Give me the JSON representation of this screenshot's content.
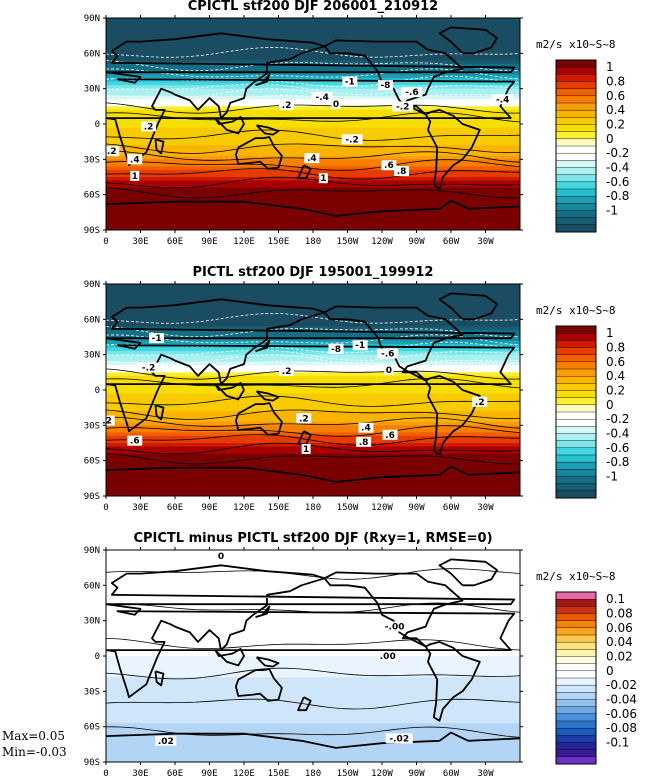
{
  "panels": [
    {
      "title": "CPICTL stf200 DJF 206001_210912",
      "unit": "m2/s x10~S~8",
      "lat_ticks": [
        "90N",
        "60N",
        "30N",
        "0",
        "30S",
        "60S",
        "90S"
      ],
      "lon_ticks": [
        "0",
        "30E",
        "60E",
        "90E",
        "120E",
        "150E",
        "180",
        "150W",
        "120W",
        "90W",
        "60W",
        "30W"
      ],
      "colorbar": {
        "labels": [
          "1",
          "0.8",
          "0.6",
          "0.4",
          "0.2",
          "0",
          "-0.2",
          "-0.4",
          "-0.6",
          "-0.8",
          "-1"
        ],
        "colors": [
          "#7a0000",
          "#a80000",
          "#cf1a00",
          "#e63c00",
          "#f25e00",
          "#f77f00",
          "#f99c10",
          "#fab400",
          "#f7cb00",
          "#f6df00",
          "#f9ef30",
          "#fffbc0",
          "#ffffff",
          "#ffffff",
          "#d5f7f7",
          "#aaf0f0",
          "#7ae6ea",
          "#44d6e0",
          "#26bfcf",
          "#1a9fb5",
          "#15879c",
          "#146f86",
          "#175d72",
          "#1a4d62"
        ]
      },
      "contour_labels": [
        {
          "text": "-1",
          "lon": 212,
          "lat": 36
        },
        {
          "text": "-8",
          "lon": 243,
          "lat": 33
        },
        {
          "text": "-.6",
          "lon": 266,
          "lat": 27
        },
        {
          "text": "-.4",
          "lon": 188,
          "lat": 23
        },
        {
          "text": "-.4",
          "lon": 345,
          "lat": 21
        },
        {
          "text": "0",
          "lon": 200,
          "lat": 17
        },
        {
          "text": "-.2",
          "lon": 258,
          "lat": 15
        },
        {
          "text": ".2",
          "lon": 157,
          "lat": 16
        },
        {
          "text": ".2",
          "lon": 37,
          "lat": -2
        },
        {
          "text": "-.2",
          "lon": 214,
          "lat": -13
        },
        {
          "text": ".4",
          "lon": 179,
          "lat": -29
        },
        {
          "text": ".2",
          "lon": 365,
          "lat": -23
        },
        {
          "text": ".4",
          "lon": 385,
          "lat": -30
        },
        {
          "text": ".6",
          "lon": 246,
          "lat": -35
        },
        {
          "text": ".8",
          "lon": 257,
          "lat": -40
        },
        {
          "text": "1",
          "lon": 189,
          "lat": -46
        },
        {
          "text": "1",
          "lon": 385,
          "lat": -44
        }
      ]
    },
    {
      "title": "PICTL stf200 DJF 195001_199912",
      "unit": "m2/s x10~S~8",
      "lat_ticks": [
        "90N",
        "60N",
        "30N",
        "0",
        "30S",
        "60S",
        "90S"
      ],
      "lon_ticks": [
        "0",
        "30E",
        "60E",
        "90E",
        "120E",
        "150E",
        "180",
        "150W",
        "120W",
        "90W",
        "60W",
        "30W"
      ],
      "colorbar": {
        "labels": [
          "1",
          "0.8",
          "0.6",
          "0.4",
          "0.2",
          "0",
          "-0.2",
          "-0.4",
          "-0.6",
          "-0.8",
          "-1"
        ],
        "colors": [
          "#7a0000",
          "#a80000",
          "#cf1a00",
          "#e63c00",
          "#f25e00",
          "#f77f00",
          "#f99c10",
          "#fab400",
          "#f7cb00",
          "#f6df00",
          "#f9ef30",
          "#fffbc0",
          "#ffffff",
          "#ffffff",
          "#d5f7f7",
          "#aaf0f0",
          "#7ae6ea",
          "#44d6e0",
          "#26bfcf",
          "#1a9fb5",
          "#15879c",
          "#146f86",
          "#175d72",
          "#1a4d62"
        ]
      },
      "contour_labels": [
        {
          "text": "-8",
          "lon": 200,
          "lat": 35
        },
        {
          "text": "-1",
          "lon": 221,
          "lat": 38
        },
        {
          "text": "-.6",
          "lon": 245,
          "lat": 31
        },
        {
          "text": "-1",
          "lon": 404,
          "lat": 44
        },
        {
          "text": "-.2",
          "lon": 397,
          "lat": 19
        },
        {
          "text": "0",
          "lon": 246,
          "lat": 17
        },
        {
          "text": ".2",
          "lon": 157,
          "lat": 16
        },
        {
          "text": ".2",
          "lon": 325,
          "lat": -10
        },
        {
          "text": ".2",
          "lon": 172,
          "lat": -24
        },
        {
          "text": ".4",
          "lon": 226,
          "lat": -32
        },
        {
          "text": ".6",
          "lon": 247,
          "lat": -38
        },
        {
          "text": ".8",
          "lon": 224,
          "lat": -44
        },
        {
          "text": "1",
          "lon": 174,
          "lat": -50
        },
        {
          "text": ".2",
          "lon": 361,
          "lat": -26
        },
        {
          "text": ".6",
          "lon": 385,
          "lat": -43
        }
      ]
    },
    {
      "title": "CPICTL minus PICTL stf200 DJF (Rxy=1, RMSE=0)",
      "unit": "m2/s x10~S~8",
      "lat_ticks": [
        "90N",
        "60N",
        "30N",
        "0",
        "30S",
        "60S",
        "90S"
      ],
      "lon_ticks": [
        "0",
        "30E",
        "60E",
        "90E",
        "120E",
        "150E",
        "180",
        "150W",
        "120W",
        "90W",
        "60W",
        "30W"
      ],
      "colorbar": {
        "labels": [
          "0.1",
          "0.08",
          "0.06",
          "0.04",
          "0.02",
          "0",
          "-0.02",
          "-0.04",
          "-0.06",
          "-0.08",
          "-0.1"
        ],
        "colors": [
          "#e668a8",
          "#a01818",
          "#c83214",
          "#e65a00",
          "#f58200",
          "#f9a620",
          "#fac84e",
          "#fde37c",
          "#fff3b0",
          "#fffbe0",
          "#ffffff",
          "#ffffff",
          "#e8f4ff",
          "#cfe6fa",
          "#b3d5f5",
          "#93c1ef",
          "#6ea8e6",
          "#4a8fdc",
          "#2b75cf",
          "#1a5bbd",
          "#1a3ea6",
          "#24249a",
          "#3b1a90",
          "#6a32c8"
        ]
      },
      "contour_labels": [
        {
          "text": "0",
          "lon": 100,
          "lat": 85
        },
        {
          "text": "-.00",
          "lon": 251,
          "lat": 25
        },
        {
          "text": ".00",
          "lon": 245,
          "lat": 0
        },
        {
          "text": ".02",
          "lon": 52,
          "lat": -72
        },
        {
          "text": "-.02",
          "lon": 255,
          "lat": -70
        }
      ]
    }
  ],
  "stats": {
    "max": "Max=0.05",
    "min": "Min=-0.03"
  }
}
